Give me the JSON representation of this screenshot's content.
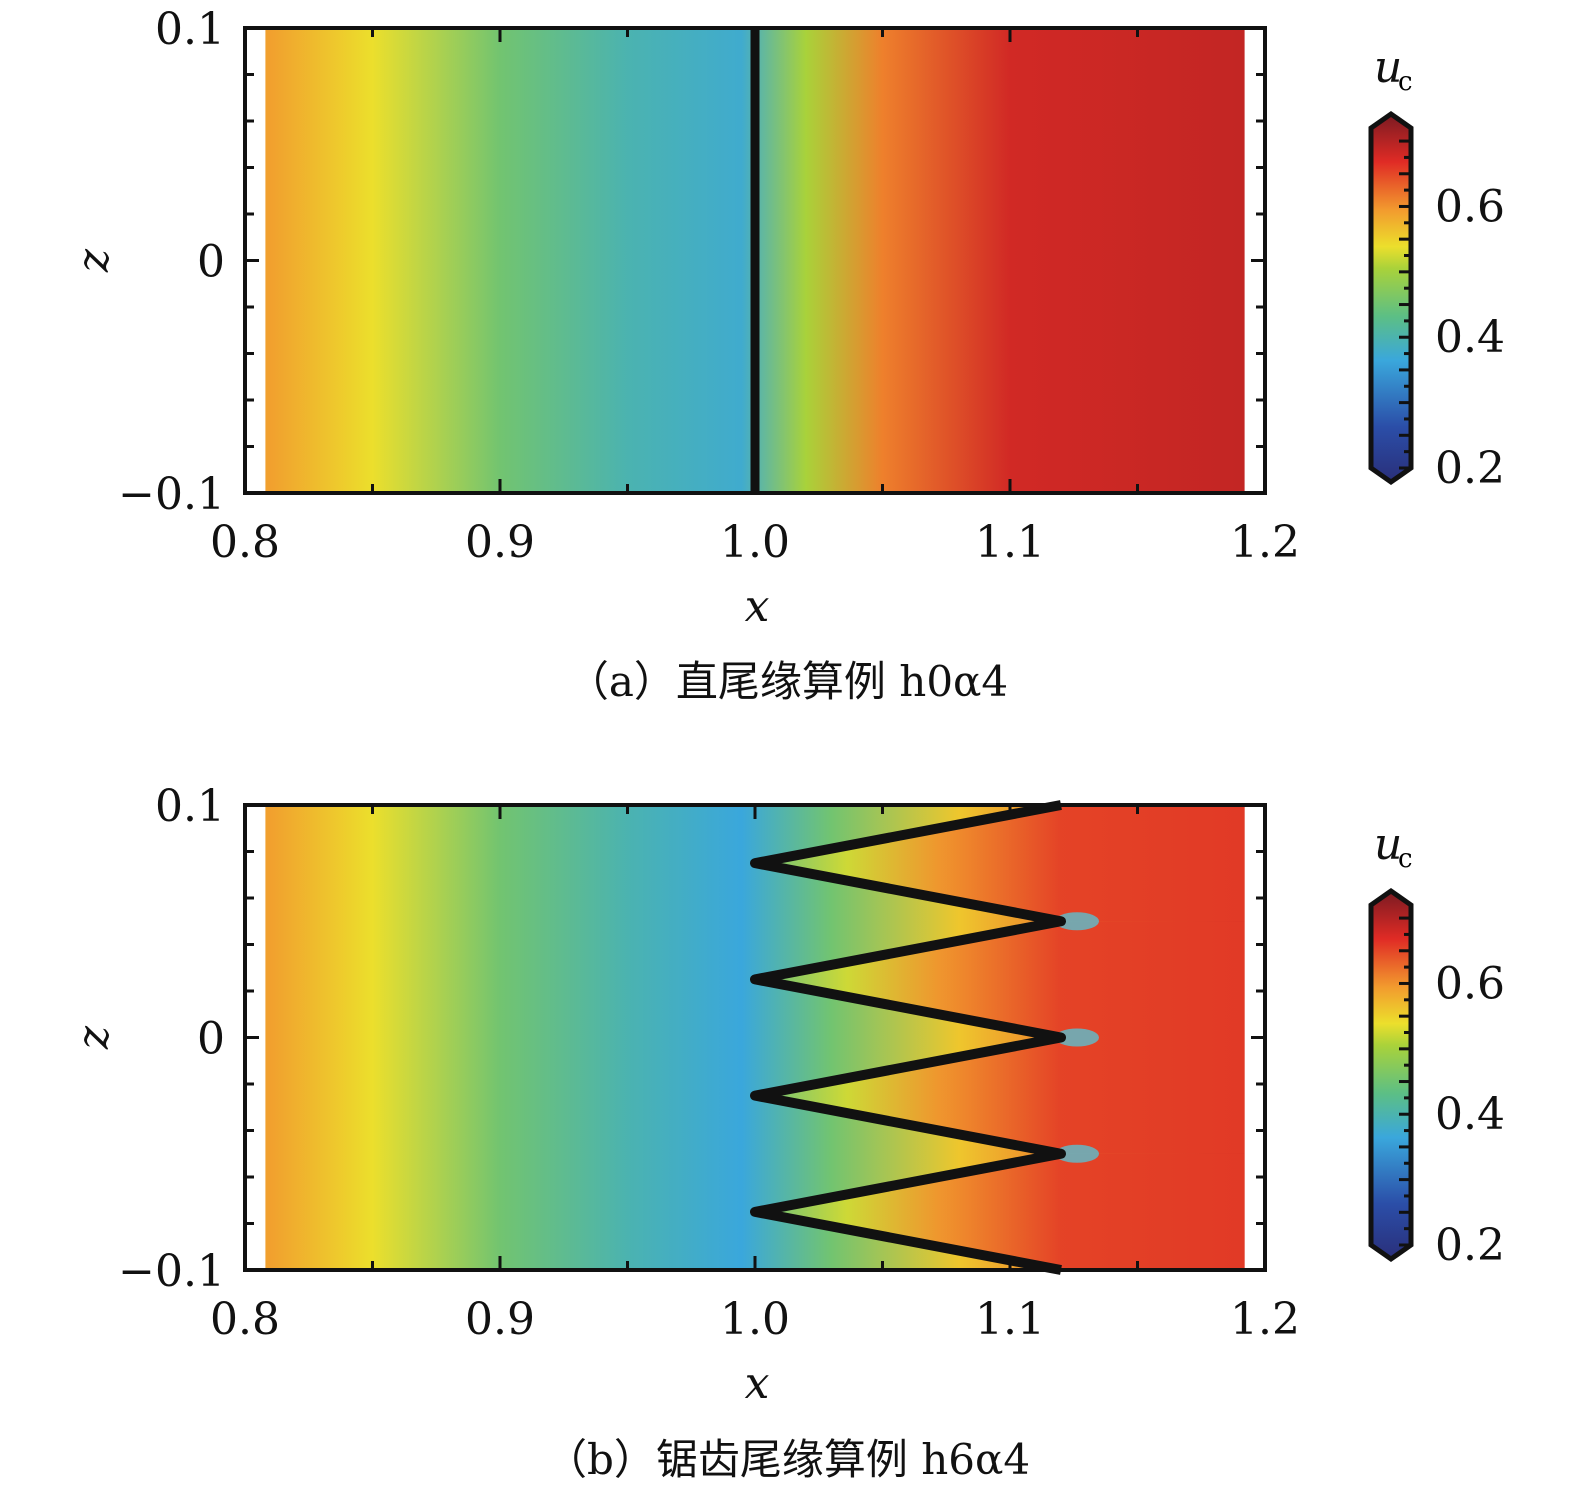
{
  "chart_data": [
    {
      "type": "heatmap",
      "panel": "a",
      "caption": "（a）直尾缘算例 h0α4",
      "xlabel": "x",
      "ylabel": "z",
      "xlim": [
        0.8,
        1.2
      ],
      "ylim": [
        -0.1,
        0.1
      ],
      "xticks": [
        "0.8",
        "0.9",
        "1.0",
        "1.1",
        "1.2"
      ],
      "yticks": [
        "−0.1",
        "0",
        "0.1"
      ],
      "colorbar": {
        "label": "u",
        "label_sub": "c",
        "range": [
          0.2,
          0.72
        ],
        "ticks": [
          "0.2",
          "0.4",
          "0.6"
        ]
      },
      "trailing_edge": {
        "shape": "straight",
        "x": 1.0
      },
      "field_profile": [
        [
          0.81,
          0.58
        ],
        [
          0.85,
          0.53
        ],
        [
          0.9,
          0.45
        ],
        [
          0.95,
          0.4
        ],
        [
          0.995,
          0.38
        ],
        [
          1.02,
          0.5
        ],
        [
          1.05,
          0.6
        ],
        [
          1.1,
          0.66
        ],
        [
          1.19,
          0.67
        ]
      ]
    },
    {
      "type": "heatmap",
      "panel": "b",
      "caption": "（b）锯齿尾缘算例 h6α4",
      "xlabel": "x",
      "ylabel": "z",
      "xlim": [
        0.8,
        1.2
      ],
      "ylim": [
        -0.1,
        0.1
      ],
      "xticks": [
        "0.8",
        "0.9",
        "1.0",
        "1.1",
        "1.2"
      ],
      "yticks": [
        "−0.1",
        "0",
        "0.1"
      ],
      "colorbar": {
        "label": "u",
        "label_sub": "c",
        "range": [
          0.2,
          0.72
        ],
        "ticks": [
          "0.2",
          "0.4",
          "0.6"
        ]
      },
      "trailing_edge": {
        "shape": "serrated",
        "root_x": 1.0,
        "tip_x": 1.12,
        "wavelength": 0.05,
        "tip_z": [
          0.1,
          0.05,
          0.0,
          -0.05,
          -0.1
        ],
        "root_z": [
          0.075,
          0.025,
          -0.025,
          -0.075
        ]
      },
      "field_profile": [
        [
          0.81,
          0.58
        ],
        [
          0.85,
          0.53
        ],
        [
          0.9,
          0.45
        ],
        [
          0.95,
          0.4
        ],
        [
          0.995,
          0.37
        ],
        [
          1.03,
          0.45
        ],
        [
          1.08,
          0.55
        ],
        [
          1.12,
          0.6
        ],
        [
          1.19,
          0.66
        ]
      ]
    }
  ],
  "colors": {
    "axis": "#111111"
  }
}
